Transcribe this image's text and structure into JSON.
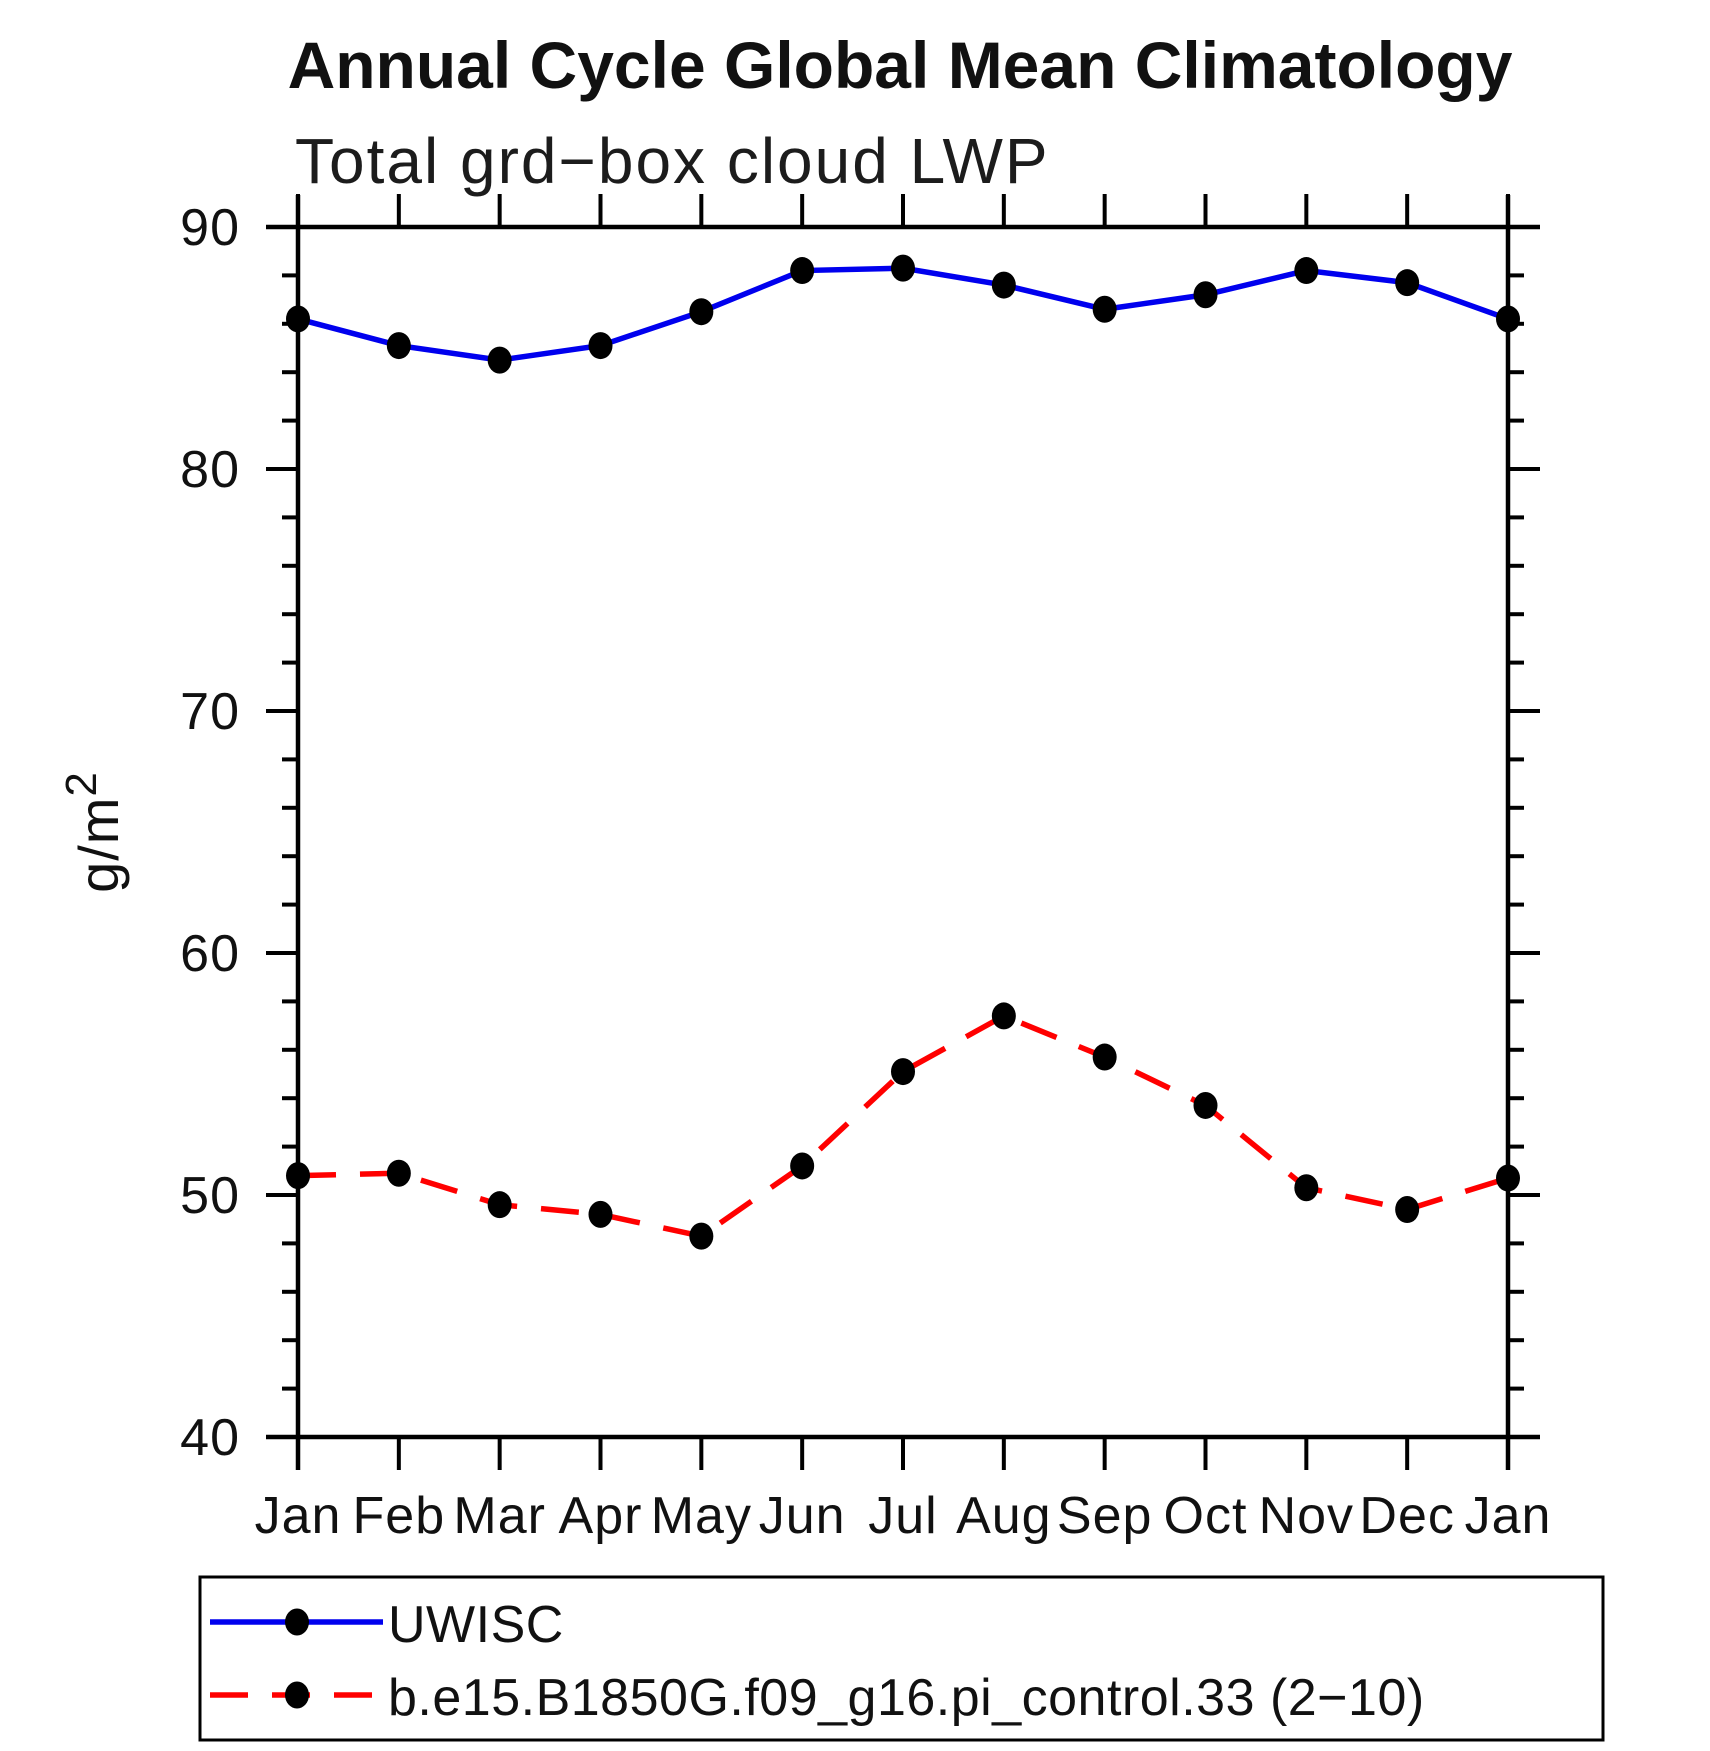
{
  "chart_data": {
    "type": "line",
    "title": "Annual Cycle Global Mean Climatology",
    "subtitle": "Total grd−box cloud LWP",
    "ylabel": {
      "base": "g/m",
      "sup": "2",
      "full": "g/m2"
    },
    "x_axis": {
      "tick_labels": [
        "Jan",
        "Feb",
        "Mar",
        "Apr",
        "May",
        "Jun",
        "Jul",
        "Aug",
        "Sep",
        "Oct",
        "Nov",
        "Dec",
        "Jan"
      ]
    },
    "y_axis": {
      "min": 40,
      "max": 90,
      "major_tick_step": 10,
      "minor_tick_step": 2,
      "major_tick_labels": [
        "90",
        "80",
        "70",
        "60",
        "50",
        "40"
      ]
    },
    "grid": false,
    "legend_position": "bottom",
    "series": [
      {
        "name": "UWISC",
        "color": "#0000EE",
        "line_style": "solid",
        "marker": "filled-circle",
        "marker_color": "#000000",
        "values": [
          86.2,
          85.1,
          84.5,
          85.1,
          86.5,
          88.2,
          88.3,
          87.6,
          86.6,
          87.2,
          88.2,
          87.7,
          86.2
        ]
      },
      {
        "name": "b.e15.B1850G.f09_g16.pi_control.33 (2−10)",
        "color": "#FF0000",
        "line_style": "dashed",
        "marker": "filled-circle",
        "marker_color": "#000000",
        "values": [
          50.8,
          50.9,
          49.6,
          49.2,
          48.3,
          51.2,
          55.1,
          57.4,
          55.7,
          53.7,
          50.3,
          49.4,
          50.7
        ]
      }
    ]
  }
}
